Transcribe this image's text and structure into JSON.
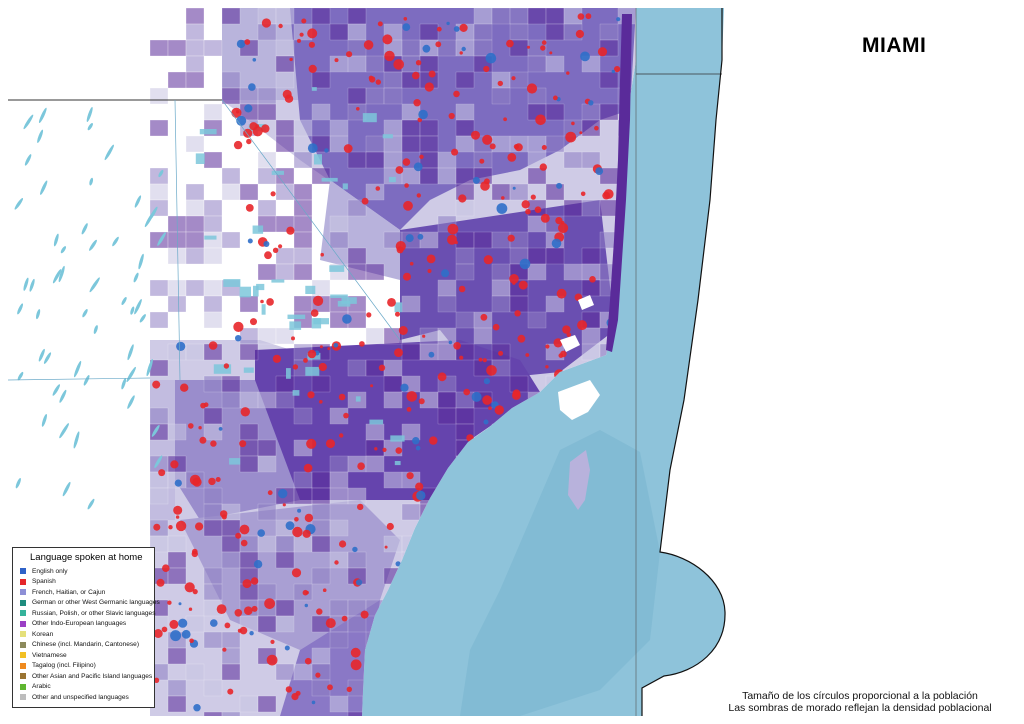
{
  "map": {
    "title": "MIAMI",
    "caption_line1": "Tamaño de los círculos proporcional a la población",
    "caption_line2": "Las sombras de morado reflejan la densidad poblacional",
    "colors": {
      "ocean": "#8ec3da",
      "low_density": "#c9c6e3",
      "mid_density": "#8f7fc4",
      "high_density": "#5a2b9a",
      "spanish_circle": "#e8262a",
      "english_circle": "#2f6fc9",
      "water_bodies": "#7cc7db"
    }
  },
  "legend": {
    "title": "Language spoken at home",
    "items": [
      {
        "label": "English only",
        "color": "#2f62c8"
      },
      {
        "label": "Spanish",
        "color": "#e5262a"
      },
      {
        "label": "French, Haitian, or Cajun",
        "color": "#8d8fd6"
      },
      {
        "label": "German or other West Germanic languages",
        "color": "#1f8c7e"
      },
      {
        "label": "Russian, Polish, or other Slavic languages",
        "color": "#35b39b"
      },
      {
        "label": "Other Indo-European languages",
        "color": "#9b3fc5"
      },
      {
        "label": "Korean",
        "color": "#e5e07a"
      },
      {
        "label": "Chinese (incl. Mandarin, Cantonese)",
        "color": "#8c8a5c"
      },
      {
        "label": "Vietnamese",
        "color": "#f2c025"
      },
      {
        "label": "Tagalog (incl. Filipino)",
        "color": "#ef8a1f"
      },
      {
        "label": "Other Asian and Pacific Island languages",
        "color": "#9a7432"
      },
      {
        "label": "Arabic",
        "color": "#5fb630"
      },
      {
        "label": "Other and unspecified languages",
        "color": "#bdbdbd"
      }
    ]
  }
}
